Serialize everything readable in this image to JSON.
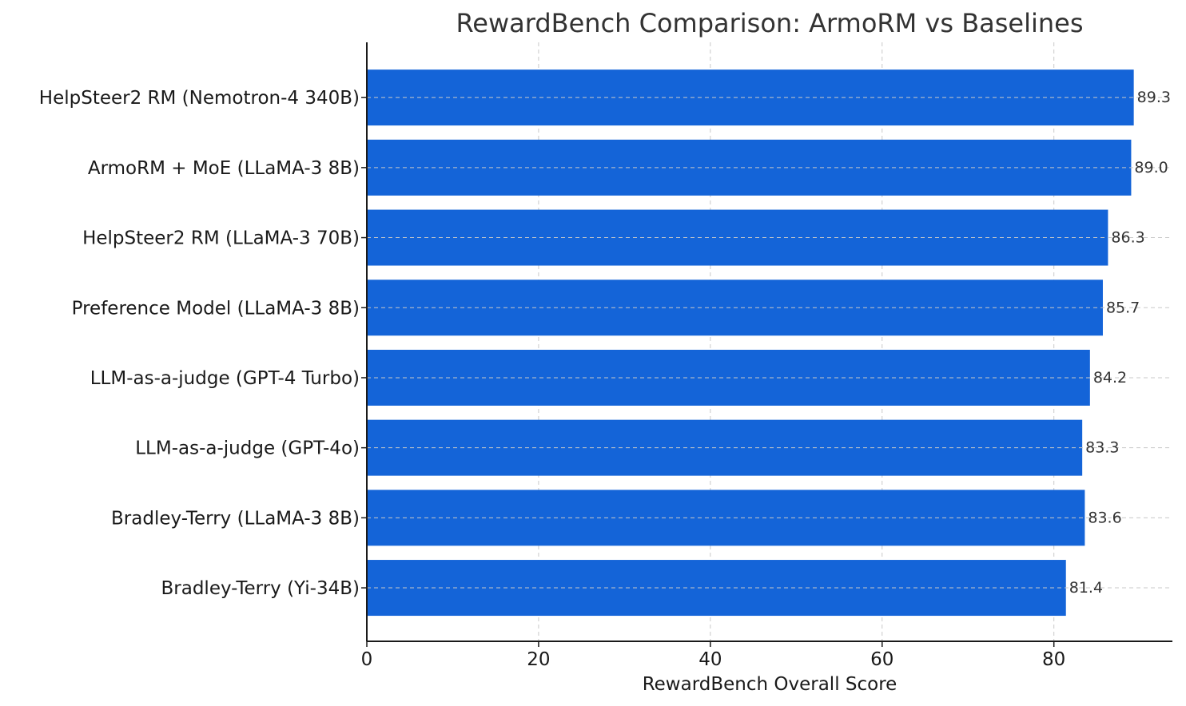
{
  "chart_data": {
    "type": "bar",
    "orientation": "horizontal",
    "title": "RewardBench Comparison: ArmoRM vs Baselines",
    "xlabel": "RewardBench Overall Score",
    "ylabel": "",
    "categories": [
      "HelpSteer2 RM (Nemotron-4 340B)",
      "ArmoRM + MoE (LLaMA-3 8B)",
      "HelpSteer2 RM (LLaMA-3 70B)",
      "Preference Model (LLaMA-3 8B)",
      "LLM-as-a-judge (GPT-4 Turbo)",
      "LLM-as-a-judge (GPT-4o)",
      "Bradley-Terry (LLaMA-3 8B)",
      "Bradley-Terry (Yi-34B)"
    ],
    "values": [
      89.3,
      89.0,
      86.3,
      85.7,
      84.2,
      83.3,
      83.6,
      81.4
    ],
    "value_labels": [
      "89.3",
      "89.0",
      "86.3",
      "85.7",
      "84.2",
      "83.3",
      "83.6",
      "81.4"
    ],
    "xlim": [
      0,
      93.8
    ],
    "xticks": [
      0,
      20,
      40,
      60,
      80
    ],
    "xtick_labels": [
      "0",
      "20",
      "40",
      "60",
      "80"
    ],
    "grid": true,
    "bar_color": "#1464d8"
  }
}
